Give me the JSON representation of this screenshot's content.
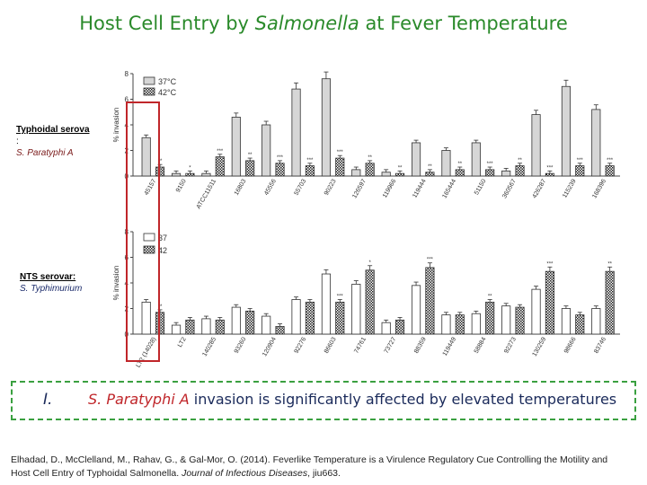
{
  "title": {
    "prefix": "Host Cell Entry by ",
    "italic": "Salmonella",
    "suffix": " at Fever Temperature"
  },
  "colors": {
    "title": "#2a8a2a",
    "highlight": "#c0262a",
    "dashed": "#3aa040",
    "bar37": "#d6d6d6",
    "bar42": "#cccccc"
  },
  "panels": {
    "top": {
      "label_head": "Typhoidal serova",
      "label_colon": ":",
      "label_species": "S. Paratyphi A"
    },
    "bottom": {
      "label_head": "NTS serovar:",
      "label_species": "S. Typhimurium"
    }
  },
  "conclusion": {
    "numeral": "I.",
    "species": "S. Paratyphi A",
    "text": " invasion is significantly affected by elevated temperatures"
  },
  "citation": {
    "line1": "Elhadad, D., McClelland, M., Rahav, G., & Gal-Mor, O. (2014). Feverlike Temperature is a Virulence Regulatory Cue Controlling the Motility and",
    "line2_a": "Host Cell Entry of Typhoidal Salmonella. ",
    "line2_journal": "Journal of Infectious Diseases",
    "line2_b": ", jiu663."
  },
  "chart_data": [
    {
      "type": "bar",
      "title": "",
      "ylabel": "% invasion",
      "ylim": [
        0,
        8
      ],
      "yticks": [
        "0",
        "2",
        "4",
        "6",
        "8"
      ],
      "legend": [
        "37°C",
        "42°C"
      ],
      "categories": [
        "45157",
        "9150",
        "ATCC11511",
        "16803",
        "45556",
        "55703",
        "90223",
        "126597",
        "119966",
        "119444",
        "165444",
        "51150",
        "360567",
        "426287",
        "115239",
        "168396"
      ],
      "series": [
        {
          "name": "37°C",
          "values": [
            3.0,
            0.2,
            0.2,
            4.6,
            4.0,
            6.8,
            7.6,
            0.5,
            0.3,
            2.6,
            2.0,
            2.6,
            0.4,
            4.8,
            7.0,
            5.2
          ]
        },
        {
          "name": "42°C",
          "values": [
            0.7,
            0.2,
            1.5,
            1.2,
            1.0,
            0.8,
            1.4,
            1.0,
            0.2,
            0.3,
            0.5,
            0.5,
            0.8,
            0.2,
            0.8,
            0.8
          ]
        }
      ],
      "stars": [
        "**",
        "*",
        "***",
        "**",
        "***",
        "***",
        "***",
        "**",
        "**",
        "**",
        "**",
        "***",
        "**",
        "***",
        "***",
        "***"
      ]
    },
    {
      "type": "bar",
      "title": "",
      "ylabel": "% invasion",
      "ylim": [
        0,
        8
      ],
      "yticks": [
        "0",
        "2",
        "4",
        "6",
        "8"
      ],
      "legend": [
        "37",
        "42"
      ],
      "categories": [
        "LT2 (14028)",
        "LT2",
        "140285",
        "93260",
        "120904",
        "92276",
        "86603",
        "74761",
        "73727",
        "88359",
        "119449",
        "58884",
        "92273",
        "130259",
        "98666",
        "83746"
      ],
      "series": [
        {
          "name": "37",
          "values": [
            2.5,
            0.7,
            1.2,
            2.1,
            1.4,
            2.7,
            4.7,
            3.9,
            0.9,
            3.8,
            1.5,
            1.6,
            2.2,
            3.5,
            2.0,
            2.0
          ]
        },
        {
          "name": "42",
          "values": [
            1.7,
            1.1,
            1.1,
            1.8,
            0.6,
            2.5,
            2.5,
            5.0,
            1.1,
            5.2,
            1.5,
            2.5,
            2.1,
            4.9,
            1.5,
            4.9
          ]
        }
      ],
      "stars": [
        "**",
        "",
        "",
        "",
        "",
        "",
        "***",
        "*",
        "",
        "***",
        "",
        "**",
        "",
        "***",
        "",
        "**"
      ]
    }
  ]
}
